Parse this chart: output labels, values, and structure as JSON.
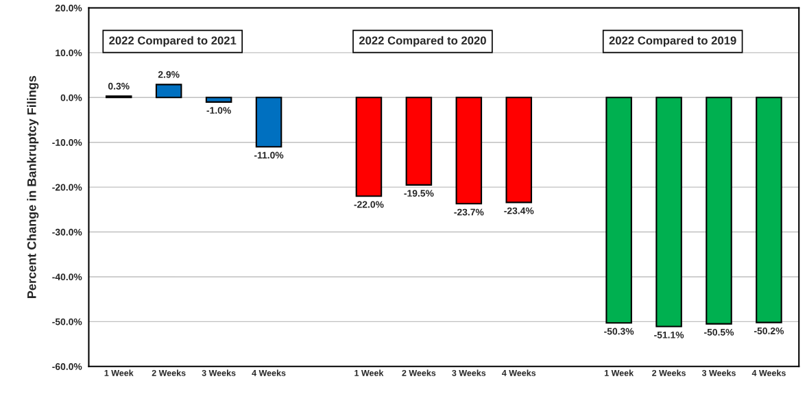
{
  "chart_data": {
    "type": "bar",
    "ylabel": "Percent Change in Bankruptcy Filings",
    "categories": [
      "1 Week",
      "2 Weeks",
      "3 Weeks",
      "4 Weeks",
      null,
      "1 Week",
      "2 Weeks",
      "3 Weeks",
      "4 Weeks",
      null,
      "1 Week",
      "2 Weeks",
      "3 Weeks",
      "4 Weeks"
    ],
    "values": [
      0.3,
      2.9,
      -1.0,
      -11.0,
      null,
      -22.0,
      -19.5,
      -23.7,
      -23.4,
      null,
      -50.3,
      -51.1,
      -50.5,
      -50.2
    ],
    "value_labels": [
      "0.3%",
      "2.9%",
      "-1.0%",
      "-11.0%",
      null,
      "-22.0%",
      "-19.5%",
      "-23.7%",
      "-23.4%",
      null,
      "-50.3%",
      "-51.1%",
      "-50.5%",
      "-50.2%"
    ],
    "colors": [
      "#0070c0",
      "#0070c0",
      "#0070c0",
      "#0070c0",
      "#ffffff",
      "#ff0000",
      "#ff0000",
      "#ff0000",
      "#ff0000",
      "#ffffff",
      "#00b050",
      "#00b050",
      "#00b050",
      "#00b050"
    ],
    "annotations": [
      "2022 Compared to 2021",
      "2022 Compared to 2020",
      "2022 Compared to 2019"
    ],
    "ylim": [
      -60,
      20
    ],
    "yticks": [
      {
        "value": -60,
        "label": "-60.0%"
      },
      {
        "value": -50,
        "label": "-50.0%"
      },
      {
        "value": -40,
        "label": "-40.0%"
      },
      {
        "value": -30,
        "label": "-30.0%"
      },
      {
        "value": -20,
        "label": "-20.0%"
      },
      {
        "value": -10,
        "label": "-10.0%"
      },
      {
        "value": 0,
        "label": "0.0%"
      },
      {
        "value": 10,
        "label": "10.0%"
      },
      {
        "value": 20,
        "label": "20.0%"
      }
    ],
    "grid": "y"
  }
}
